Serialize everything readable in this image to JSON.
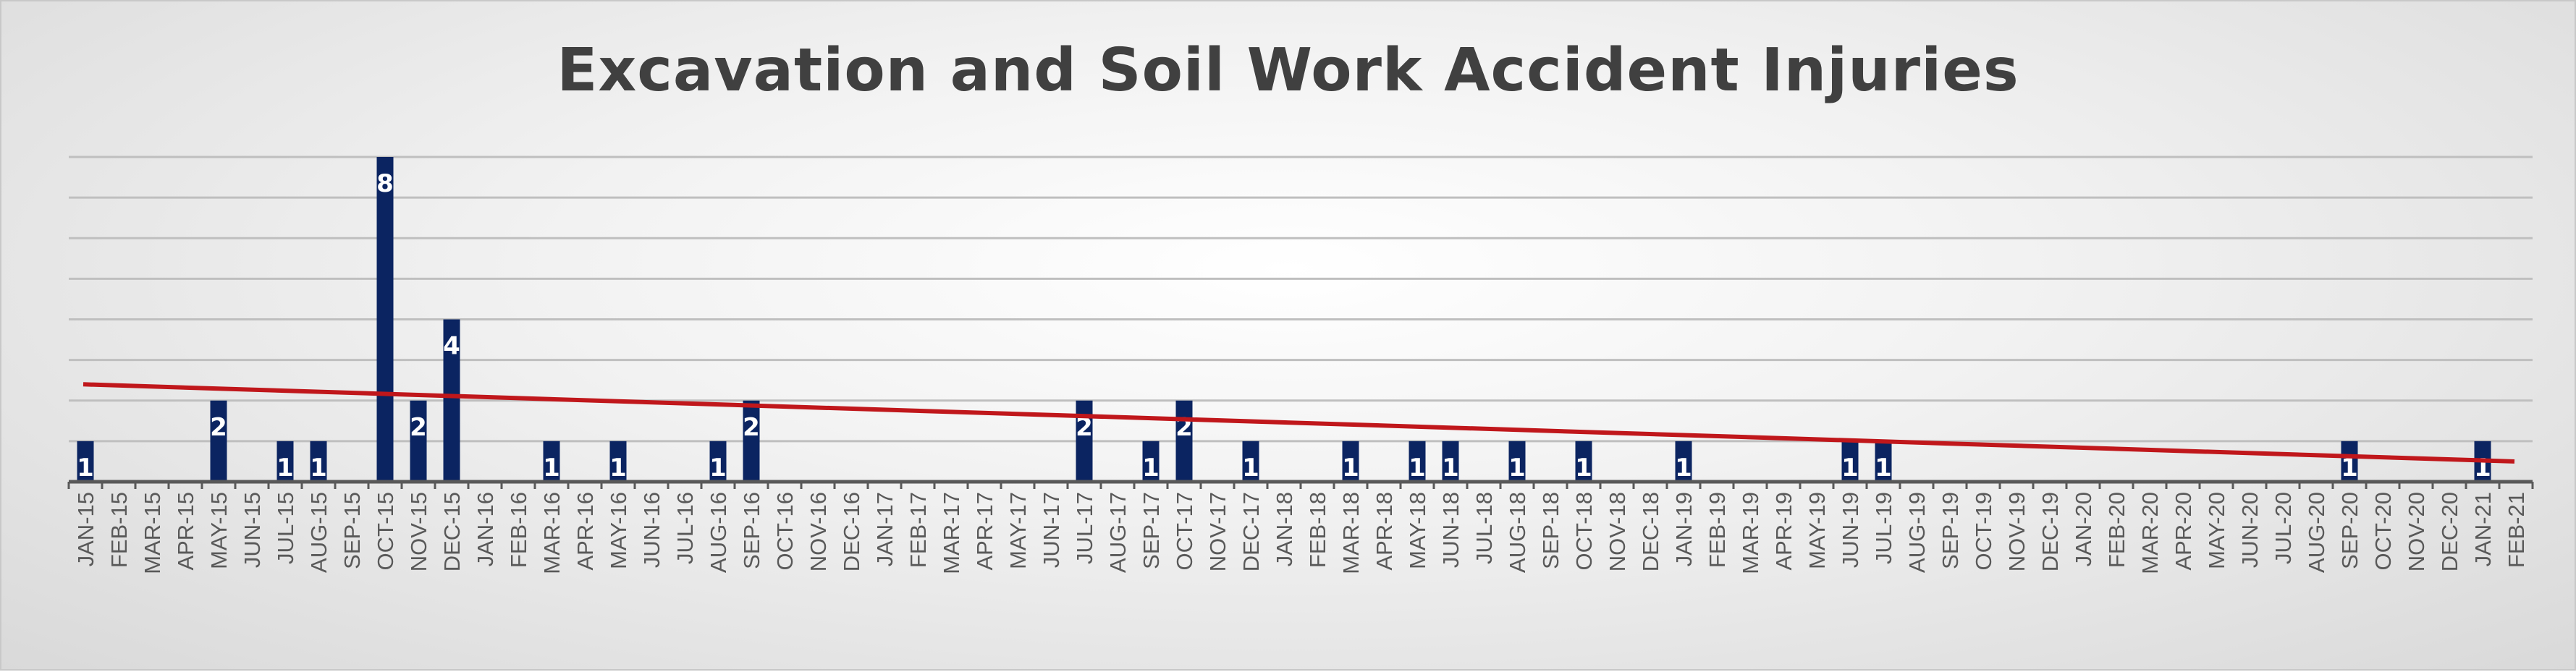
{
  "chart_data": {
    "type": "bar",
    "title": "Excavation and Soil Work Accident Injuries",
    "xlabel": "",
    "ylabel": "",
    "ylim": [
      0,
      8
    ],
    "grid": true,
    "legend": "none",
    "categories": [
      "JAN-15",
      "FEB-15",
      "MAR-15",
      "APR-15",
      "MAY-15",
      "JUN-15",
      "JUL-15",
      "AUG-15",
      "SEP-15",
      "OCT-15",
      "NOV-15",
      "DEC-15",
      "JAN-16",
      "FEB-16",
      "MAR-16",
      "APR-16",
      "MAY-16",
      "JUN-16",
      "JUL-16",
      "AUG-16",
      "SEP-16",
      "OCT-16",
      "NOV-16",
      "DEC-16",
      "JAN-17",
      "FEB-17",
      "MAR-17",
      "APR-17",
      "MAY-17",
      "JUN-17",
      "JUL-17",
      "AUG-17",
      "SEP-17",
      "OCT-17",
      "NOV-17",
      "DEC-17",
      "JAN-18",
      "FEB-18",
      "MAR-18",
      "APR-18",
      "MAY-18",
      "JUN-18",
      "JUL-18",
      "AUG-18",
      "SEP-18",
      "OCT-18",
      "NOV-18",
      "DEC-18",
      "JAN-19",
      "FEB-19",
      "MAR-19",
      "APR-19",
      "MAY-19",
      "JUN-19",
      "JUL-19",
      "AUG-19",
      "SEP-19",
      "OCT-19",
      "NOV-19",
      "DEC-19",
      "JAN-20",
      "FEB-20",
      "MAR-20",
      "APR-20",
      "MAY-20",
      "JUN-20",
      "JUL-20",
      "AUG-20",
      "SEP-20",
      "OCT-20",
      "NOV-20",
      "DEC-20",
      "JAN-21",
      "FEB-21"
    ],
    "values": [
      1,
      0,
      0,
      0,
      2,
      0,
      1,
      1,
      0,
      8,
      2,
      4,
      0,
      0,
      1,
      0,
      1,
      0,
      0,
      1,
      2,
      0,
      0,
      0,
      0,
      0,
      0,
      0,
      0,
      0,
      2,
      0,
      1,
      2,
      0,
      1,
      0,
      0,
      1,
      0,
      1,
      1,
      0,
      1,
      0,
      1,
      0,
      0,
      1,
      0,
      0,
      0,
      0,
      1,
      1,
      0,
      0,
      0,
      0,
      0,
      0,
      0,
      0,
      0,
      0,
      0,
      0,
      0,
      1,
      0,
      0,
      0,
      1,
      0
    ],
    "trendline": {
      "start": 2.4,
      "end": 0.5
    },
    "colors": {
      "bar": "#0b2461",
      "trendline": "#c0171b",
      "grid": "#bfbfbf",
      "axis": "#595959",
      "tick_label": "#595959",
      "bar_label": "#ffffff"
    }
  }
}
